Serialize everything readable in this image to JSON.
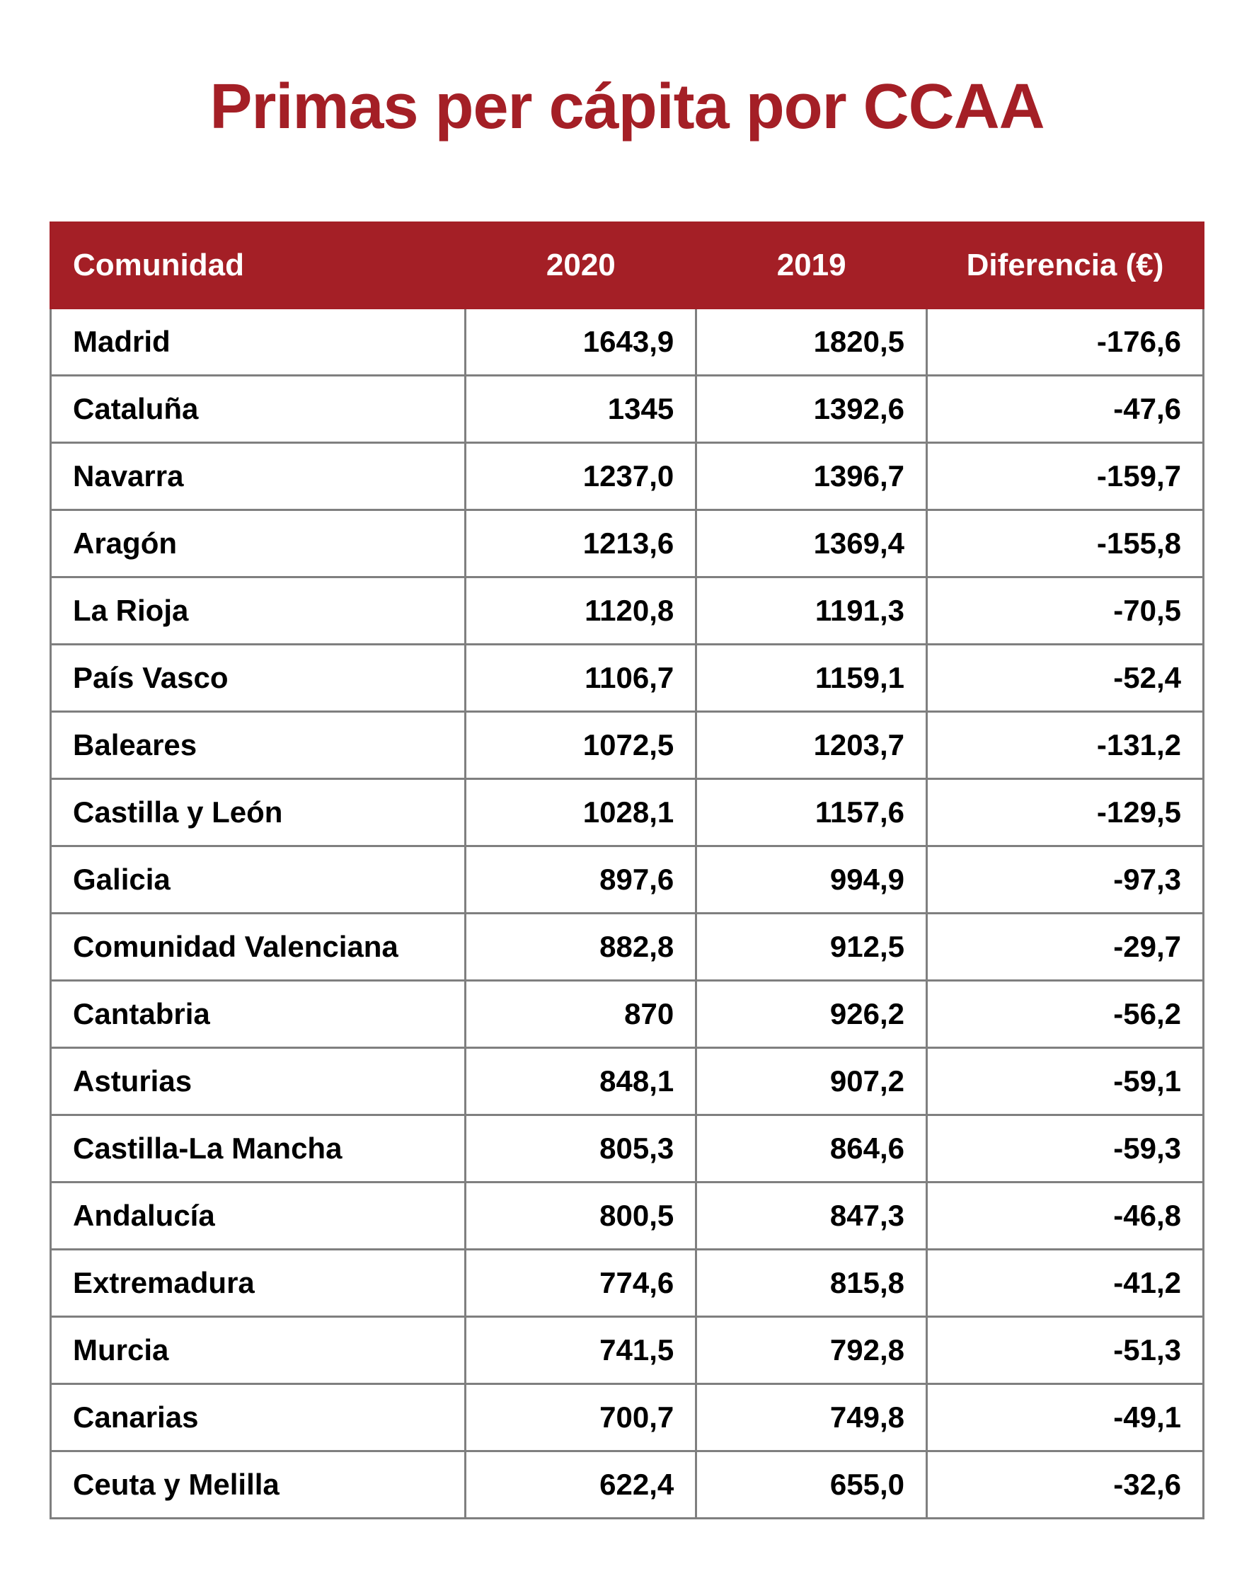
{
  "title": "Primas per cápita por CCAA",
  "table": {
    "columns": [
      "Comunidad",
      "2020",
      "2019",
      "Diferencia (€)"
    ],
    "col_align": [
      "left",
      "right",
      "right",
      "right"
    ],
    "col_widths_pct": [
      36,
      20,
      20,
      24
    ],
    "header_bg": "#a41f26",
    "header_fg": "#ffffff",
    "border_color": "#7f7f7f",
    "header_fontsize": 44,
    "cell_fontsize": 42,
    "rows": [
      [
        "Madrid",
        "1643,9",
        "1820,5",
        "-176,6"
      ],
      [
        "Cataluña",
        "1345",
        "1392,6",
        "-47,6"
      ],
      [
        "Navarra",
        "1237,0",
        "1396,7",
        "-159,7"
      ],
      [
        "Aragón",
        "1213,6",
        "1369,4",
        "-155,8"
      ],
      [
        "La Rioja",
        "1120,8",
        "1191,3",
        "-70,5"
      ],
      [
        "País Vasco",
        "1106,7",
        "1159,1",
        "-52,4"
      ],
      [
        "Baleares",
        "1072,5",
        "1203,7",
        "-131,2"
      ],
      [
        "Castilla y León",
        "1028,1",
        "1157,6",
        "-129,5"
      ],
      [
        "Galicia",
        "897,6",
        "994,9",
        "-97,3"
      ],
      [
        "Comunidad Valenciana",
        "882,8",
        "912,5",
        "-29,7"
      ],
      [
        "Cantabria",
        "870",
        "926,2",
        "-56,2"
      ],
      [
        "Asturias",
        "848,1",
        "907,2",
        "-59,1"
      ],
      [
        "Castilla-La Mancha",
        "805,3",
        "864,6",
        "-59,3"
      ],
      [
        "Andalucía",
        "800,5",
        "847,3",
        "-46,8"
      ],
      [
        "Extremadura",
        "774,6",
        "815,8",
        "-41,2"
      ],
      [
        "Murcia",
        "741,5",
        "792,8",
        "-51,3"
      ],
      [
        "Canarias",
        "700,7",
        "749,8",
        "-49,1"
      ],
      [
        "Ceuta y Melilla",
        "622,4",
        "655,0",
        "-32,6"
      ]
    ]
  },
  "style": {
    "title_color": "#a41f26",
    "title_fontsize": 90,
    "background": "#ffffff"
  }
}
